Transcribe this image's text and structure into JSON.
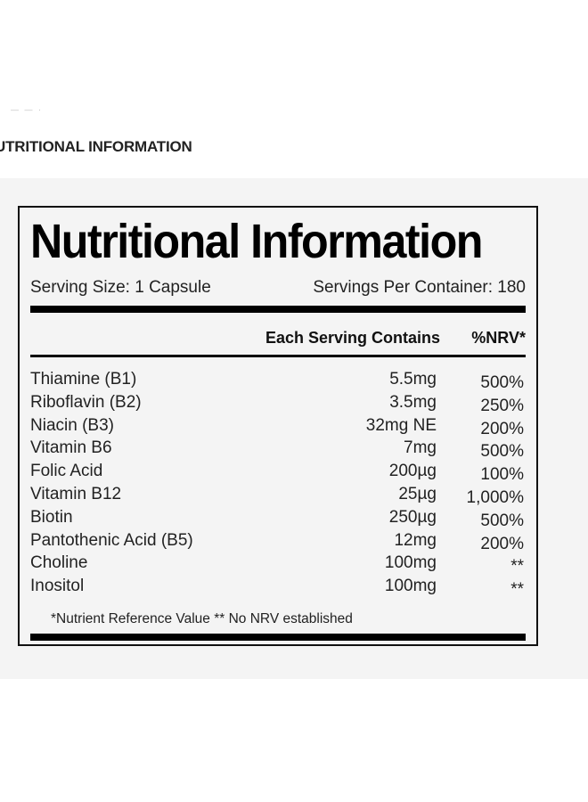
{
  "page": {
    "header_fragment": "— — ·",
    "section_heading": "UTRITIONAL INFORMATION"
  },
  "label": {
    "title": "Nutritional Information",
    "serving_size": "Serving Size: 1 Capsule",
    "servings_per_container": "Servings Per Container: 180",
    "col_each": "Each Serving Contains",
    "col_nrv": "%NRV*",
    "rows": [
      {
        "name": "Thiamine (B1)",
        "amount": "5.5mg",
        "nrv": "500%"
      },
      {
        "name": "Riboflavin (B2)",
        "amount": "3.5mg",
        "nrv": "250%"
      },
      {
        "name": "Niacin (B3)",
        "amount": "32mg NE",
        "nrv": "200%"
      },
      {
        "name": "Vitamin B6",
        "amount": "7mg",
        "nrv": "500%"
      },
      {
        "name": "Folic Acid",
        "amount": "200µg",
        "nrv": "100%"
      },
      {
        "name": "Vitamin B12",
        "amount": "25µg",
        "nrv": "1,000%"
      },
      {
        "name": "Biotin",
        "amount": "250µg",
        "nrv": "500%"
      },
      {
        "name": "Pantothenic Acid (B5)",
        "amount": "12mg",
        "nrv": "200%"
      },
      {
        "name": "Choline",
        "amount": "100mg",
        "nrv": "**"
      },
      {
        "name": "Inositol",
        "amount": "100mg",
        "nrv": "**"
      }
    ],
    "footnote": "*Nutrient Reference Value  ** No NRV established"
  }
}
